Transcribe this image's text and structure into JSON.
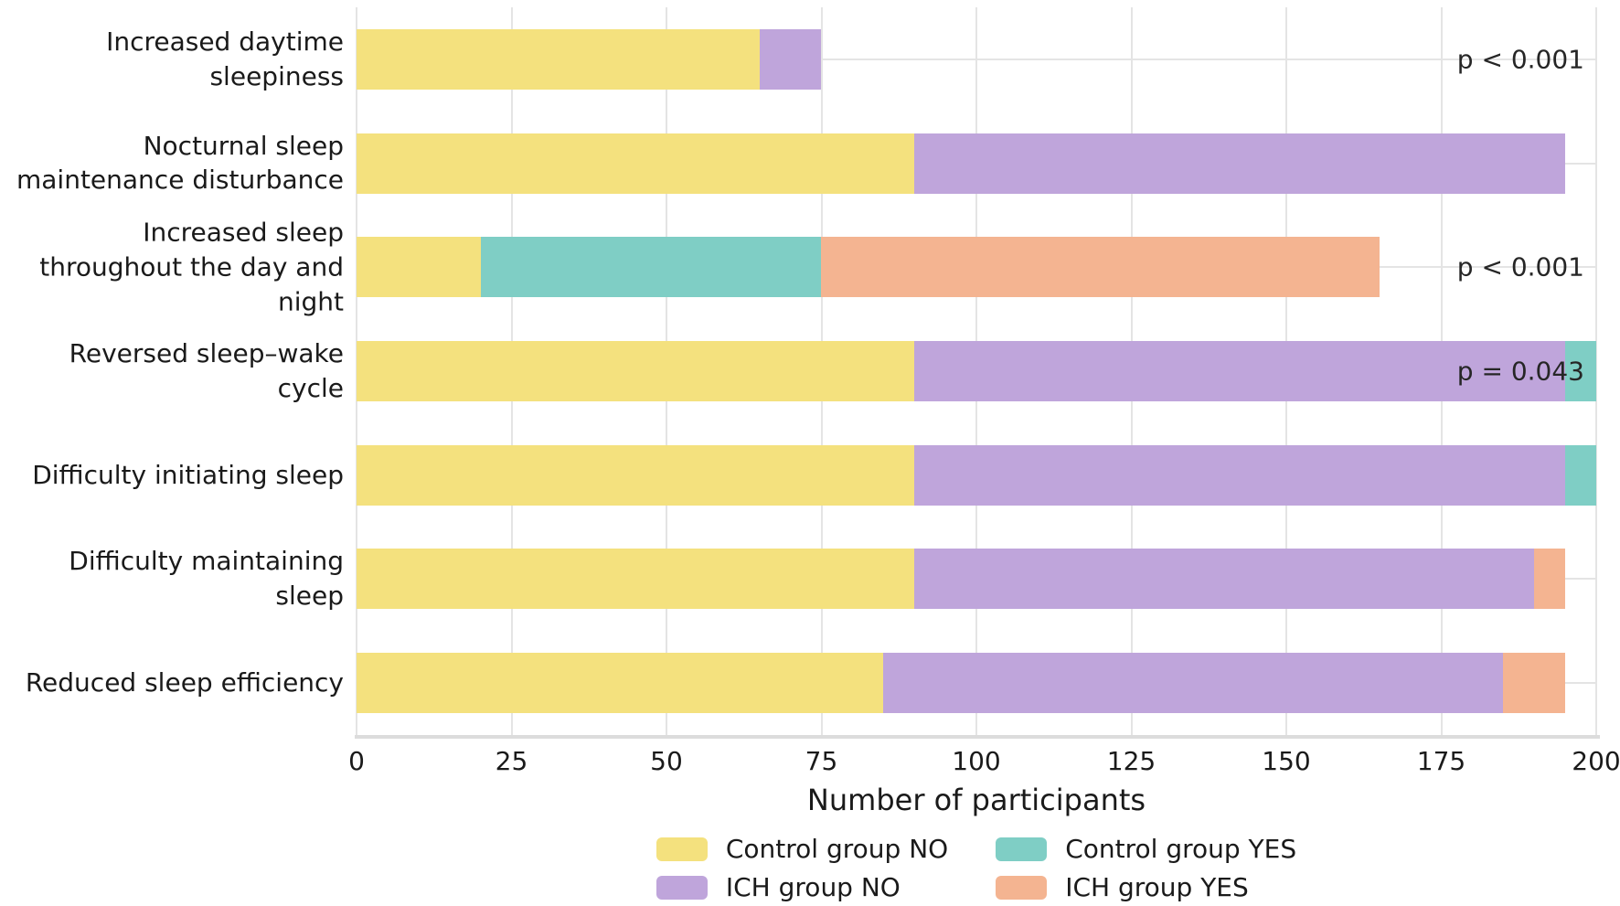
{
  "figure": {
    "background": "#ffffff",
    "text_color": "#262626",
    "grid_color": "#e4e4e4",
    "axis_line_color": "#dcdcdc"
  },
  "chart_data": {
    "type": "bar",
    "orientation": "horizontal",
    "stacked": true,
    "title": "",
    "xlabel": "Number of participants",
    "ylabel": "",
    "xlim": [
      0,
      200
    ],
    "xticks": [
      0,
      25,
      50,
      75,
      100,
      125,
      150,
      175,
      200
    ],
    "grid": true,
    "legend_position": "bottom",
    "categories": [
      "Increased daytime sleepiness",
      "Nocturnal sleep\nmaintenance disturbance",
      "Increased sleep\nthroughout the day and night",
      "Reversed sleep–wake cycle",
      "Difficulty initiating sleep",
      "Difficulty maintaining sleep",
      "Reduced sleep efficiency"
    ],
    "series": [
      {
        "name": "Control group NO",
        "color": "#f4e17e",
        "values": [
          65,
          90,
          20,
          90,
          90,
          90,
          85
        ]
      },
      {
        "name": "ICH group NO",
        "color": "#bfa5db",
        "values": [
          10,
          105,
          0,
          105,
          105,
          100,
          100
        ]
      },
      {
        "name": "Control group YES",
        "color": "#7fcec5",
        "values": [
          0,
          0,
          55,
          5,
          5,
          0,
          0
        ]
      },
      {
        "name": "ICH group YES",
        "color": "#f4b491",
        "values": [
          0,
          0,
          90,
          0,
          0,
          5,
          10
        ]
      }
    ],
    "annotations": [
      {
        "category_index": 0,
        "text": "p < 0.001"
      },
      {
        "category_index": 2,
        "text": "p < 0.001"
      },
      {
        "category_index": 3,
        "text": "p = 0.043"
      }
    ],
    "legend_columns": [
      [
        "Control group NO",
        "ICH group NO"
      ],
      [
        "Control group YES",
        "ICH group YES"
      ]
    ]
  }
}
